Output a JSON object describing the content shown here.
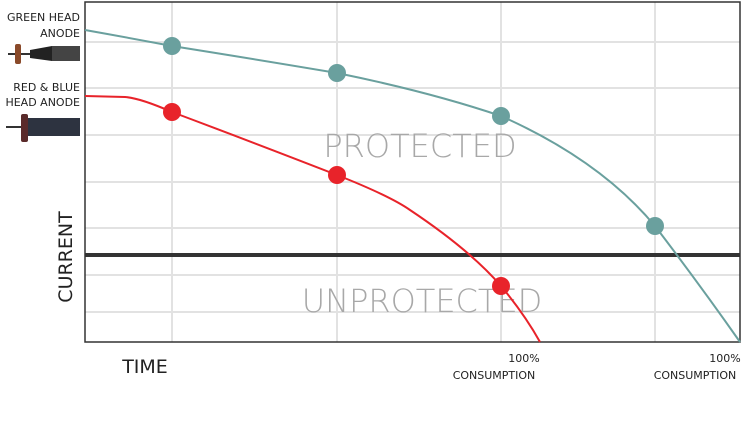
{
  "legend": [
    {
      "lines": [
        "GREEN HEAD",
        "ANODE"
      ]
    },
    {
      "lines": [
        "RED & BLUE",
        "HEAD ANODE"
      ]
    }
  ],
  "zones": {
    "upper": "PROTECTED",
    "lower": "UNPROTECTED"
  },
  "axes": {
    "y": "CURRENT",
    "x": "TIME"
  },
  "markers": [
    {
      "lines": [
        "100%",
        "CONSUMPTION"
      ]
    },
    {
      "lines": [
        "100%",
        "CONSUMPTION"
      ]
    }
  ]
}
